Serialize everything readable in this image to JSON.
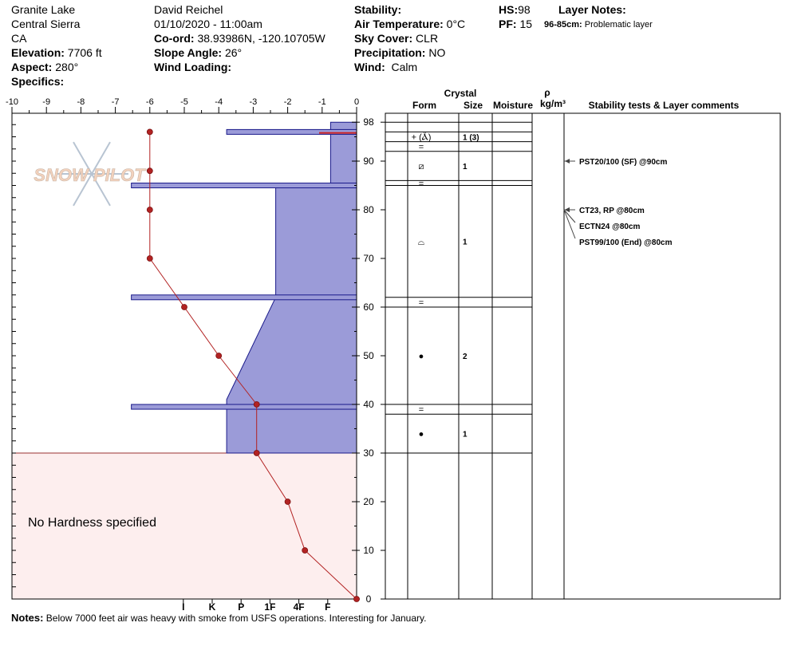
{
  "header": {
    "location": "Granite Lake",
    "range": "Central Sierra",
    "state": "CA",
    "elevation_label": "Elevation:",
    "elevation_value": "7706 ft",
    "aspect_label": "Aspect:",
    "aspect_value": "280°",
    "specifics_label": "Specifics:",
    "observer": "David Reichel",
    "datetime": "01/10/2020 - 11:00am",
    "coord_label": "Co-ord:",
    "coord_value": "38.93986N, -120.10705W",
    "slope_label": "Slope Angle:",
    "slope_value": "26°",
    "wind_loading_label": "Wind Loading:",
    "stability_label": "Stability:",
    "air_temp_label": "Air Temperature:",
    "air_temp_value": "0°C",
    "sky_label": "Sky Cover:",
    "sky_value": "CLR",
    "precip_label": "Precipitation:",
    "precip_value": "NO",
    "wind_label": "Wind:",
    "wind_value": "Calm",
    "hs_label": "HS:",
    "hs_value": "98",
    "pf_label": "PF:",
    "pf_value": "15",
    "layer_notes_label": "Layer Notes:",
    "layer_note_range": "96-85cm:",
    "layer_note_text": "Problematic layer"
  },
  "watermark": "SNOW PILOT",
  "columns": {
    "crystal": "Crystal",
    "form": "Form",
    "size": "Size",
    "moisture": "Moisture",
    "rho": "ρ",
    "density_unit": "kg/m³",
    "stability": "Stability tests & Layer comments"
  },
  "no_hardness_text": "No Hardness specified",
  "notes": {
    "label": "Notes:",
    "text": "Below 7000 feet air was heavy with smoke from USFS operations. Interesting for January."
  },
  "chart_data": {
    "type": "line",
    "temperature": {
      "xlabel": "",
      "xlim": [
        -10,
        0
      ],
      "x_ticks": [
        "-10",
        "-9",
        "-8",
        "-7",
        "-6",
        "-5",
        "-4",
        "-3",
        "-2",
        "-1",
        "0"
      ],
      "points": [
        {
          "temp": -6,
          "depth": 96
        },
        {
          "temp": -6,
          "depth": 88
        },
        {
          "temp": -6,
          "depth": 80
        },
        {
          "temp": -6,
          "depth": 70
        },
        {
          "temp": -5,
          "depth": 60
        },
        {
          "temp": -4,
          "depth": 50
        },
        {
          "temp": -2.9,
          "depth": 40
        },
        {
          "temp": -2.9,
          "depth": 30
        },
        {
          "temp": -2,
          "depth": 20
        },
        {
          "temp": -1.5,
          "depth": 10
        },
        {
          "temp": 0,
          "depth": 0
        }
      ]
    },
    "depth_axis": {
      "ylim": [
        0,
        98
      ],
      "ticks": [
        "0",
        "10",
        "20",
        "30",
        "40",
        "50",
        "60",
        "70",
        "80",
        "90",
        "98"
      ],
      "tick_values": [
        0,
        10,
        20,
        30,
        40,
        50,
        60,
        70,
        80,
        90,
        98
      ]
    },
    "hardness_axis": {
      "labels": [
        "I",
        "K",
        "P",
        "1F",
        "4F",
        "F"
      ],
      "positions": [
        6,
        5,
        4,
        3,
        2,
        1
      ]
    },
    "hardness_profile": [
      {
        "depth": 98,
        "hardness": 0.9
      },
      {
        "depth": 85,
        "hardness": 0.9
      },
      {
        "depth": 85,
        "hardness": 2.8
      },
      {
        "depth": 62,
        "hardness": 2.8
      },
      {
        "depth": 41,
        "hardness": 4.5
      },
      {
        "depth": 30,
        "hardness": 4.5
      }
    ],
    "layer_lines": [
      {
        "depth": 96,
        "hardness": 4.5
      },
      {
        "depth": 85,
        "hardness": 7.8
      },
      {
        "depth": 62,
        "hardness": 7.8
      },
      {
        "depth": 39.5,
        "hardness": 7.8
      }
    ],
    "no_hardness_region": {
      "top": 30,
      "bottom": 0
    },
    "layers": [
      {
        "top": 98,
        "bottom": 96,
        "form": "",
        "size": ""
      },
      {
        "top": 96,
        "bottom": 94,
        "form": "+ (Ⲁ̆)",
        "size": "1 (3)"
      },
      {
        "top": 94,
        "bottom": 92,
        "form": "=",
        "size": ""
      },
      {
        "top": 92,
        "bottom": 86,
        "form": "⧄",
        "size": "1"
      },
      {
        "top": 86,
        "bottom": 85,
        "form": "=",
        "size": ""
      },
      {
        "top": 85,
        "bottom": 62,
        "form": "⌓",
        "size": "1"
      },
      {
        "top": 62,
        "bottom": 60,
        "form": "=",
        "size": ""
      },
      {
        "top": 60,
        "bottom": 40,
        "form": "●",
        "size": "2"
      },
      {
        "top": 40,
        "bottom": 38,
        "form": "=",
        "size": ""
      },
      {
        "top": 38,
        "bottom": 30,
        "form": "●",
        "size": "1"
      }
    ],
    "stability_tests": [
      {
        "depth": 90,
        "text": "PST20/100 (SF) @90cm"
      },
      {
        "depth": 80,
        "text": "CT23, RP @80cm"
      },
      {
        "depth": 80,
        "text": "ECTN24 @80cm"
      },
      {
        "depth": 80,
        "text": "PST99/100 (End) @80cm"
      }
    ],
    "colors": {
      "hardness_fill": "#9b9bd8",
      "hardness_stroke": "#1a1a8a",
      "temperature": "#b22222",
      "no_hardness_fill": "#fdeeee"
    }
  }
}
